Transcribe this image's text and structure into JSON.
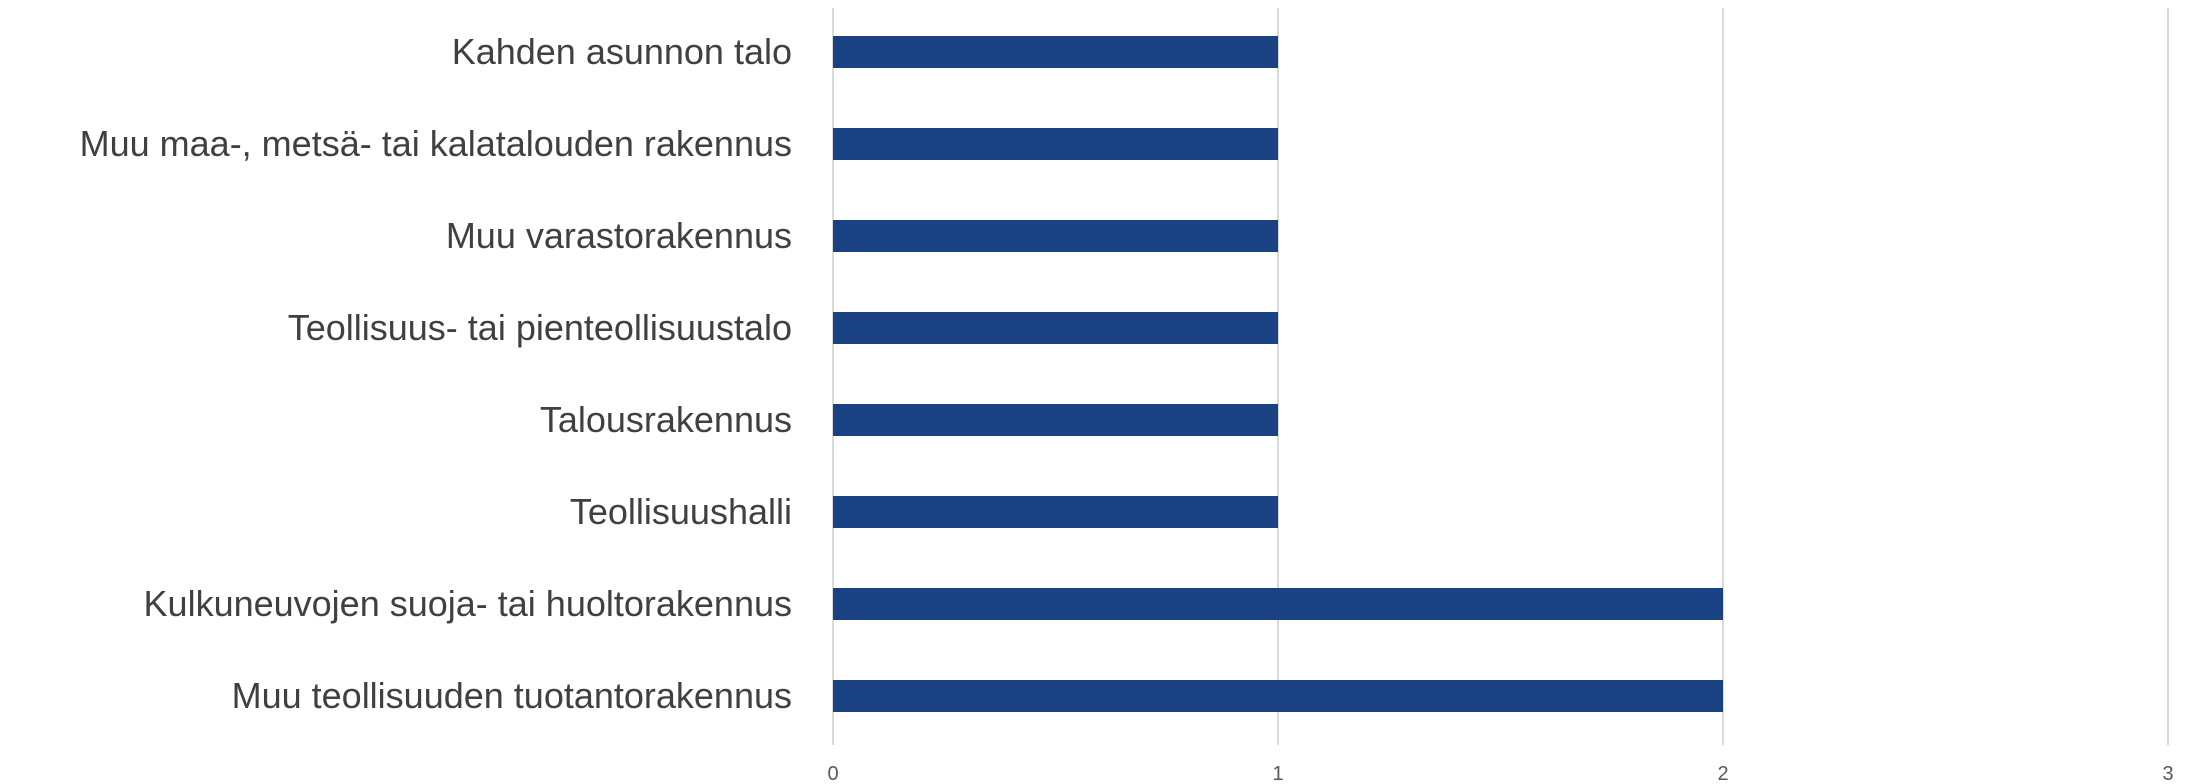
{
  "chart_data": {
    "type": "bar",
    "orientation": "horizontal",
    "categories": [
      "Kahden asunnon talo",
      "Muu maa-, metsä- tai kalatalouden rakennus",
      "Muu varastorakennus",
      "Teollisuus- tai pienteollisuustalo",
      "Talousrakennus",
      "Teollisuushalli",
      "Kulkuneuvojen suoja- tai huoltorakennus",
      "Muu teollisuuden tuotantorakennus"
    ],
    "values": [
      1,
      1,
      1,
      1,
      1,
      1,
      2,
      2
    ],
    "xlim": [
      0,
      3
    ],
    "xticks": [
      "0",
      "1",
      "2",
      "3"
    ],
    "grid": "vertical",
    "legend": "none",
    "colors": {
      "bar": "#1a4282",
      "grid": "#d9d9d9",
      "text": "#404040"
    }
  }
}
